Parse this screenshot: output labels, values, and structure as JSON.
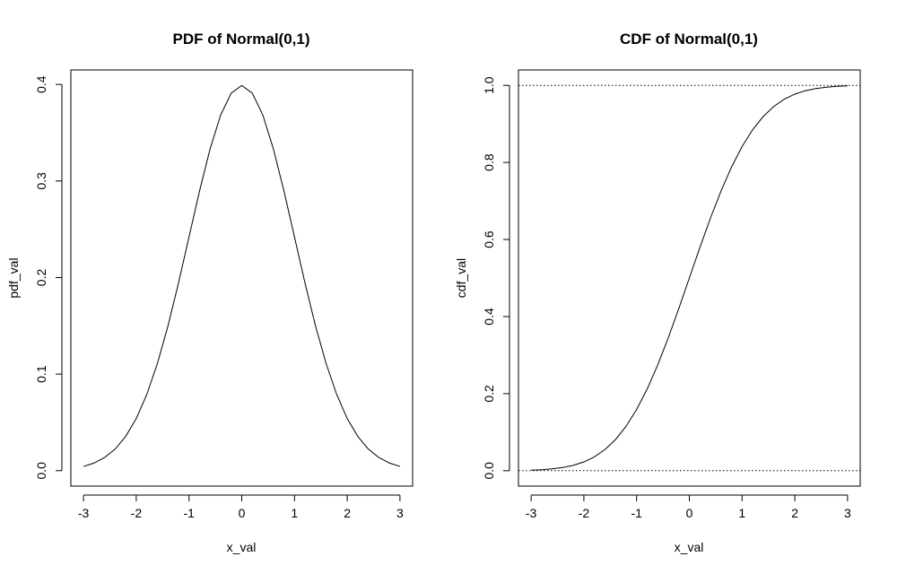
{
  "chart_data": [
    {
      "type": "line",
      "title": "PDF of Normal(0,1)",
      "xlabel": "x_val",
      "ylabel": "pdf_val",
      "xlim": [
        -3.24,
        3.24
      ],
      "ylim": [
        -0.016,
        0.415
      ],
      "x_ticks": [
        -3,
        -2,
        -1,
        0,
        1,
        2,
        3
      ],
      "x_tick_labels": [
        "-3",
        "-2",
        "-1",
        "0",
        "1",
        "2",
        "3"
      ],
      "y_ticks": [
        0.0,
        0.1,
        0.2,
        0.3,
        0.4
      ],
      "y_tick_labels": [
        "0.0",
        "0.1",
        "0.2",
        "0.3",
        "0.4"
      ],
      "series": [
        {
          "name": "pdf_val",
          "x": [
            -3.0,
            -2.8,
            -2.6,
            -2.4,
            -2.2,
            -2.0,
            -1.8,
            -1.6,
            -1.4,
            -1.2,
            -1.0,
            -0.8,
            -0.6,
            -0.4,
            -0.2,
            0.0,
            0.2,
            0.4,
            0.6,
            0.8,
            1.0,
            1.2,
            1.4,
            1.6,
            1.8,
            2.0,
            2.2,
            2.4,
            2.6,
            2.8,
            3.0
          ],
          "y": [
            0.0044,
            0.0079,
            0.0136,
            0.0224,
            0.0355,
            0.054,
            0.079,
            0.1109,
            0.1497,
            0.1942,
            0.242,
            0.2897,
            0.3332,
            0.3683,
            0.391,
            0.3989,
            0.391,
            0.3683,
            0.3332,
            0.2897,
            0.242,
            0.1942,
            0.1497,
            0.1109,
            0.079,
            0.054,
            0.0355,
            0.0224,
            0.0136,
            0.0079,
            0.0044
          ]
        }
      ],
      "hlines": []
    },
    {
      "type": "line",
      "title": "CDF of Normal(0,1)",
      "xlabel": "x_val",
      "ylabel": "cdf_val",
      "xlim": [
        -3.24,
        3.24
      ],
      "ylim": [
        -0.04,
        1.04
      ],
      "x_ticks": [
        -3,
        -2,
        -1,
        0,
        1,
        2,
        3
      ],
      "x_tick_labels": [
        "-3",
        "-2",
        "-1",
        "0",
        "1",
        "2",
        "3"
      ],
      "y_ticks": [
        0.0,
        0.2,
        0.4,
        0.6,
        0.8,
        1.0
      ],
      "y_tick_labels": [
        "0.0",
        "0.2",
        "0.4",
        "0.6",
        "0.8",
        "1.0"
      ],
      "series": [
        {
          "name": "cdf_val",
          "x": [
            -3.0,
            -2.8,
            -2.6,
            -2.4,
            -2.2,
            -2.0,
            -1.8,
            -1.6,
            -1.4,
            -1.2,
            -1.0,
            -0.8,
            -0.6,
            -0.4,
            -0.2,
            0.0,
            0.2,
            0.4,
            0.6,
            0.8,
            1.0,
            1.2,
            1.4,
            1.6,
            1.8,
            2.0,
            2.2,
            2.4,
            2.6,
            2.8,
            3.0
          ],
          "y": [
            0.0013,
            0.0026,
            0.0047,
            0.0082,
            0.0139,
            0.0228,
            0.0359,
            0.0548,
            0.0808,
            0.1151,
            0.1587,
            0.2119,
            0.2743,
            0.3446,
            0.4207,
            0.5,
            0.5793,
            0.6554,
            0.7257,
            0.7881,
            0.8413,
            0.8849,
            0.9192,
            0.9452,
            0.9641,
            0.9772,
            0.9861,
            0.9918,
            0.9953,
            0.9974,
            0.9987
          ]
        }
      ],
      "hlines": [
        0,
        1
      ]
    }
  ]
}
